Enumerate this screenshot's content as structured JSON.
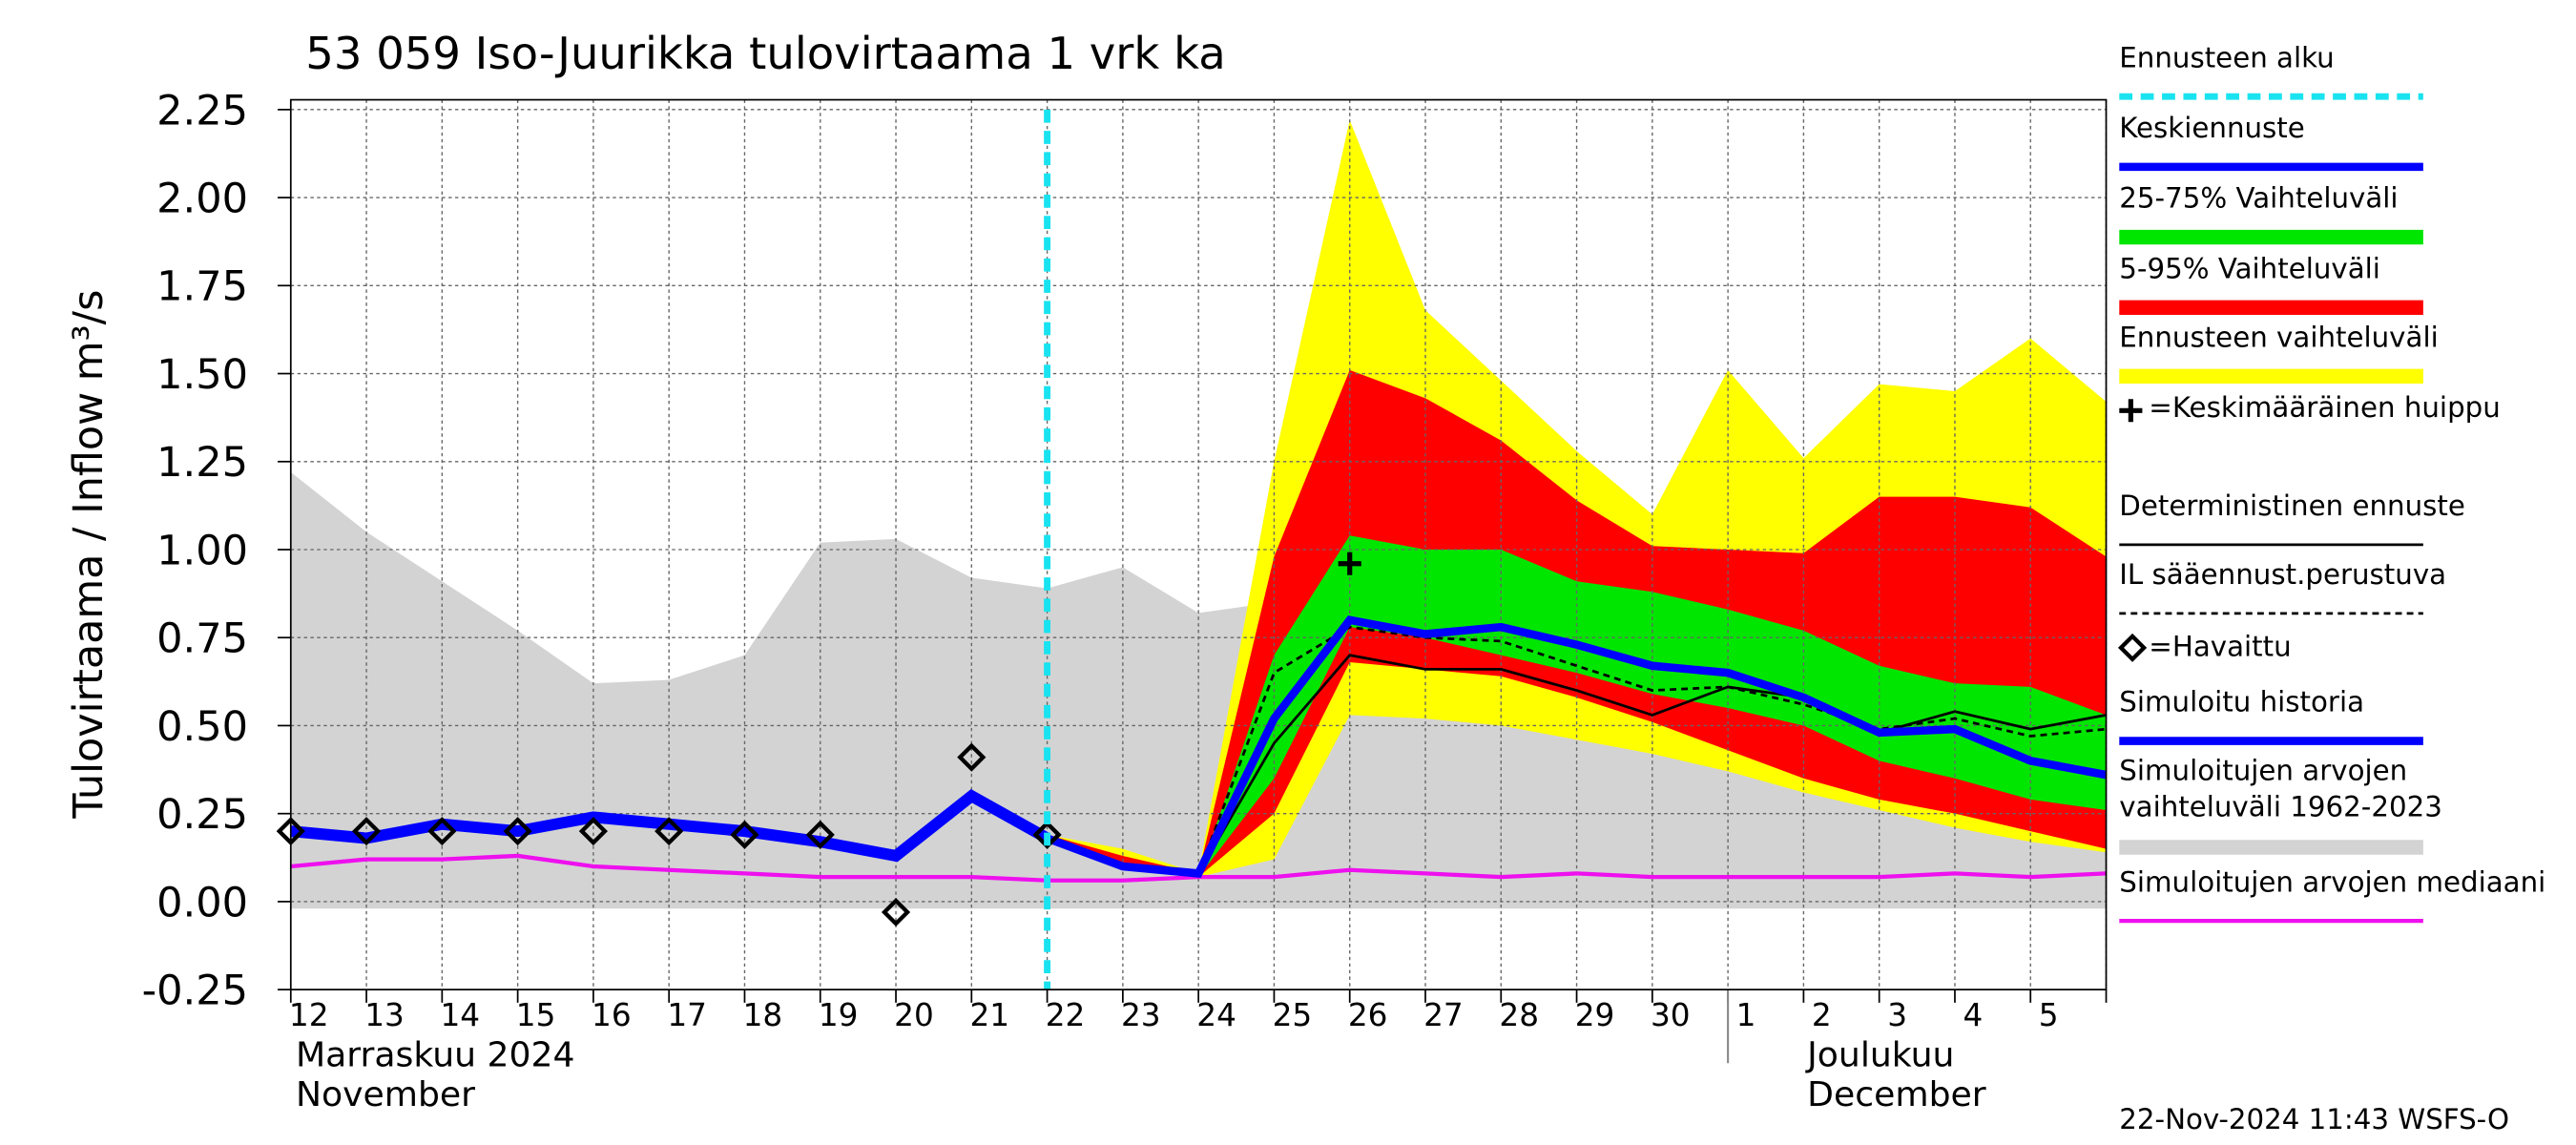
{
  "chart_data": {
    "type": "band-line",
    "title": "53 059 Iso-Juurikka tulovirtaama 1 vrk ka",
    "y_label": "Tulovirtaama / Inflow",
    "y_unit": "m³/s",
    "month_labels": [
      "Marraskuu 2024",
      "November",
      "Joulukuu",
      "December"
    ],
    "footer": "22-Nov-2024 11:43 WSFS-O",
    "categories": [
      "12",
      "13",
      "14",
      "15",
      "16",
      "17",
      "18",
      "19",
      "20",
      "21",
      "22",
      "23",
      "24",
      "25",
      "26",
      "27",
      "28",
      "29",
      "30",
      "1",
      "2",
      "3",
      "4",
      "5",
      null
    ],
    "ylim": [
      -0.25,
      2.25
    ],
    "yticks": [
      -0.25,
      0.25,
      0.75,
      1.25,
      1.75,
      2.25,
      {
        "value": 0,
        "label": "0.00"
      },
      {
        "value": 0.5,
        "label": "0.50"
      },
      {
        "value": 1,
        "label": "1.00"
      },
      {
        "value": 1.5,
        "label": "1.50"
      },
      {
        "value": 2,
        "label": "2.00"
      }
    ],
    "grid": true,
    "series": [
      {
        "name": "Ennusteen alku",
        "kind": "vline",
        "color": "#19e3f0",
        "x": 10
      },
      {
        "name": "Keskiennuste",
        "kind": "line",
        "color": "#0000ff",
        "values": [
          null,
          null,
          null,
          null,
          null,
          null,
          null,
          null,
          null,
          null,
          0.18,
          0.1,
          0.08,
          0.52,
          0.8,
          0.76,
          0.78,
          0.73,
          0.67,
          0.65,
          0.58,
          0.48,
          0.49,
          0.4,
          0.36
        ]
      },
      {
        "name": "25-75% Vaihteluväli",
        "kind": "band",
        "color": "#00e600",
        "upper": [
          null,
          null,
          null,
          null,
          null,
          null,
          null,
          null,
          null,
          null,
          0.18,
          0.11,
          0.07,
          0.7,
          1.04,
          1.0,
          1.0,
          0.91,
          0.88,
          0.83,
          0.77,
          0.67,
          0.62,
          0.61,
          0.53
        ],
        "lower": [
          null,
          null,
          null,
          null,
          null,
          null,
          null,
          null,
          null,
          null,
          0.18,
          0.1,
          0.07,
          0.35,
          0.78,
          0.75,
          0.7,
          0.65,
          0.59,
          0.55,
          0.5,
          0.4,
          0.35,
          0.29,
          0.26
        ]
      },
      {
        "name": "5-95% Vaihteluväli",
        "kind": "band",
        "color": "#ff0000",
        "upper": [
          null,
          null,
          null,
          null,
          null,
          null,
          null,
          null,
          null,
          null,
          0.19,
          0.13,
          0.08,
          0.98,
          1.51,
          1.43,
          1.31,
          1.14,
          1.01,
          1.0,
          0.99,
          1.15,
          1.15,
          1.12,
          0.98
        ],
        "lower": [
          null,
          null,
          null,
          null,
          null,
          null,
          null,
          null,
          null,
          null,
          0.17,
          0.1,
          0.07,
          0.25,
          0.68,
          0.66,
          0.64,
          0.58,
          0.51,
          0.43,
          0.35,
          0.29,
          0.25,
          0.2,
          0.15
        ]
      },
      {
        "name": "Ennusteen vaihteluväli",
        "kind": "band",
        "color": "#ffff00",
        "upper": [
          null,
          null,
          null,
          null,
          null,
          null,
          null,
          null,
          null,
          null,
          0.19,
          0.15,
          0.08,
          1.25,
          2.22,
          1.68,
          1.48,
          1.28,
          1.1,
          1.51,
          1.26,
          1.47,
          1.45,
          1.6,
          1.42
        ],
        "lower": [
          null,
          null,
          null,
          null,
          null,
          null,
          null,
          null,
          null,
          null,
          0.17,
          0.09,
          0.07,
          0.12,
          0.53,
          0.52,
          0.5,
          0.46,
          0.42,
          0.37,
          0.31,
          0.26,
          0.21,
          0.17,
          0.14
        ]
      },
      {
        "name": "=Keskimääräinen huippu",
        "kind": "peak",
        "color": "#000000",
        "x": 14,
        "value": 0.96
      },
      {
        "name": "Deterministinen ennuste",
        "kind": "line",
        "color": "#000000",
        "values": [
          null,
          null,
          null,
          null,
          null,
          null,
          null,
          null,
          null,
          null,
          null,
          null,
          0.08,
          0.45,
          0.7,
          0.66,
          0.66,
          0.6,
          0.53,
          0.61,
          0.58,
          0.48,
          0.54,
          0.49,
          0.53
        ]
      },
      {
        "name": "IL sääennust.perustuva",
        "kind": "dashed",
        "color": "#000000",
        "values": [
          null,
          null,
          null,
          null,
          null,
          null,
          null,
          null,
          null,
          null,
          null,
          null,
          0.08,
          0.65,
          0.78,
          0.75,
          0.74,
          0.67,
          0.6,
          0.61,
          0.56,
          0.49,
          0.52,
          0.47,
          0.49
        ]
      },
      {
        "name": "=Havaittu",
        "kind": "points",
        "color": "#000000",
        "values": [
          0.2,
          0.2,
          0.2,
          0.2,
          0.2,
          0.2,
          0.19,
          0.19,
          -0.03,
          0.41,
          0.19,
          null,
          null,
          null,
          null,
          null,
          null,
          null,
          null,
          null,
          null,
          null,
          null,
          null,
          null
        ]
      },
      {
        "name": "Simuloitu historia",
        "kind": "line",
        "color": "#0000ff",
        "values": [
          0.2,
          0.18,
          0.22,
          0.2,
          0.24,
          0.22,
          0.2,
          0.17,
          0.13,
          0.3,
          0.18,
          null,
          null,
          null,
          null,
          null,
          null,
          null,
          null,
          null,
          null,
          null,
          null,
          null,
          null
        ]
      },
      {
        "name": "Simuloitujen arvojen vaihteluväli 1962-2023",
        "kind": "band",
        "color": "#d3d3d3",
        "upper": [
          1.22,
          1.05,
          0.91,
          0.77,
          0.62,
          0.63,
          0.7,
          1.02,
          1.03,
          0.92,
          0.89,
          0.95,
          0.82,
          0.85,
          0.87,
          0.77,
          0.73,
          0.67,
          0.64,
          0.58,
          0.55,
          0.59,
          0.72,
          0.75,
          0.85
        ],
        "lower": [
          -0.02,
          -0.02,
          -0.02,
          -0.02,
          -0.02,
          -0.02,
          -0.02,
          -0.02,
          -0.02,
          -0.02,
          -0.02,
          -0.02,
          -0.02,
          -0.02,
          -0.02,
          -0.02,
          -0.02,
          -0.02,
          -0.02,
          -0.02,
          -0.02,
          -0.02,
          -0.02,
          -0.02,
          -0.02
        ]
      },
      {
        "name": "Simuloitujen arvojen mediaani",
        "kind": "line",
        "color": "#ee10ee",
        "values": [
          0.1,
          0.12,
          0.12,
          0.13,
          0.1,
          0.09,
          0.08,
          0.07,
          0.07,
          0.07,
          0.06,
          0.06,
          0.07,
          0.07,
          0.09,
          0.08,
          0.07,
          0.08,
          0.07,
          0.07,
          0.07,
          0.07,
          0.08,
          0.07,
          0.08
        ]
      }
    ]
  }
}
